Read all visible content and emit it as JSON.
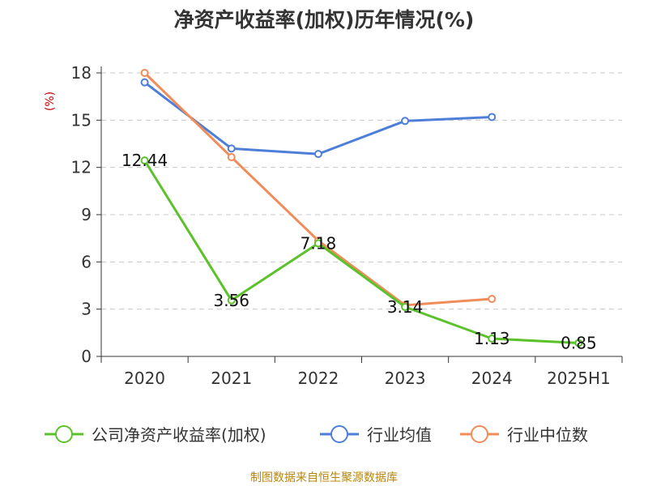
{
  "chart_data": {
    "type": "line",
    "title": "净资产收益率(加权)历年情况(%)",
    "ylabel": "(%)",
    "categories": [
      "2020",
      "2021",
      "2022",
      "2023",
      "2024",
      "2025H1"
    ],
    "ylim": [
      0,
      18
    ],
    "yticks": [
      0,
      3,
      6,
      9,
      12,
      15,
      18
    ],
    "grid": true,
    "legend_position": "bottom",
    "series": [
      {
        "name": "公司净资产收益率(加权)",
        "color": "#5cc22b",
        "values": [
          12.44,
          3.56,
          7.18,
          3.14,
          1.13,
          0.85
        ],
        "labels": [
          "12.44",
          "3.56",
          "7.18",
          "3.14",
          "1.13",
          "0.85"
        ]
      },
      {
        "name": "行业均值",
        "color": "#4e7fd8",
        "values": [
          17.4,
          13.2,
          12.85,
          14.95,
          15.2,
          null
        ]
      },
      {
        "name": "行业中位数",
        "color": "#f08c5a",
        "values": [
          18.0,
          12.65,
          7.35,
          3.25,
          3.65,
          null
        ]
      }
    ]
  },
  "source": "制图数据来自恒生聚源数据库"
}
